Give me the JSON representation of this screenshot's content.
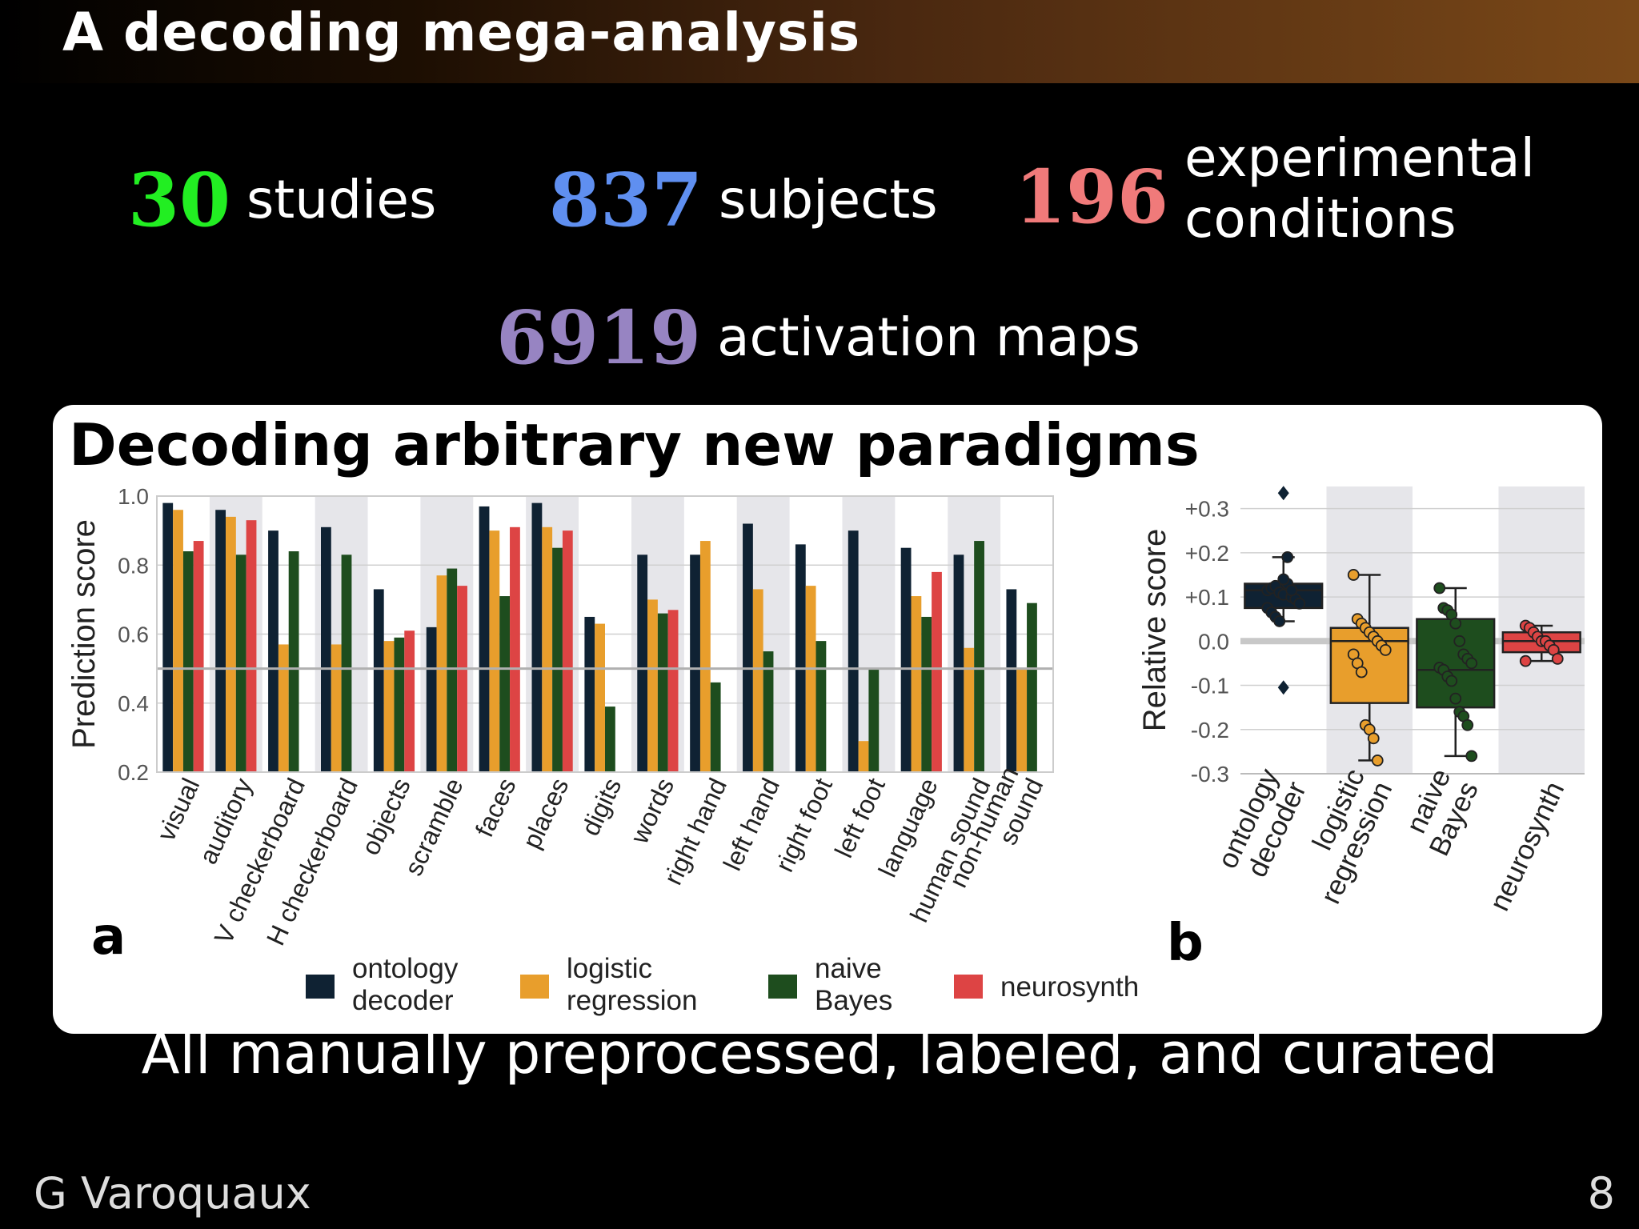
{
  "slide": {
    "title": "A decoding mega-analysis",
    "stats": [
      {
        "number": "30",
        "label": "studies",
        "color": "#22ee22"
      },
      {
        "number": "837",
        "label": "subjects",
        "color": "#5f8ff0"
      },
      {
        "number": "196",
        "label_line1": "experimental",
        "label_line2": "conditions",
        "color": "#f07a7a"
      },
      {
        "number": "6919",
        "label": "activation maps",
        "color": "#9784c2"
      }
    ],
    "panel_title": "Decoding arbitrary new paradigms",
    "footer_text": "All manually preprocessed, labeled, and curated",
    "author": "G Varoquaux",
    "page_number": "8"
  },
  "chart_data": [
    {
      "type": "bar",
      "panel_label": "a",
      "ylabel": "Prediction score",
      "ylim": [
        0.2,
        1.0
      ],
      "yticks": [
        "0.2",
        "0.4",
        "0.6",
        "0.8",
        "1.0"
      ],
      "reference_line": 0.5,
      "grid": true,
      "categories": [
        "visual",
        "auditory",
        "V checkerboard",
        "H checkerboard",
        "objects",
        "scramble",
        "faces",
        "places",
        "digits",
        "words",
        "right hand",
        "left hand",
        "right foot",
        "left foot",
        "language",
        "human sound",
        "non-human sound"
      ],
      "category_label_lines": [
        [
          "visual"
        ],
        [
          "auditory"
        ],
        [
          "V checkerboard"
        ],
        [
          "H checkerboard"
        ],
        [
          "objects"
        ],
        [
          "scramble"
        ],
        [
          "faces"
        ],
        [
          "places"
        ],
        [
          "digits"
        ],
        [
          "words"
        ],
        [
          "right hand"
        ],
        [
          "left hand"
        ],
        [
          "right foot"
        ],
        [
          "left foot"
        ],
        [
          "language"
        ],
        [
          "human sound"
        ],
        [
          "non-human",
          "sound"
        ]
      ],
      "series": [
        {
          "name": "ontology decoder",
          "legend_lines": [
            "ontology",
            "decoder"
          ],
          "color": "#0f2233",
          "values": [
            0.98,
            0.96,
            0.9,
            0.91,
            0.73,
            0.62,
            0.97,
            0.98,
            0.65,
            0.83,
            0.83,
            0.92,
            0.86,
            0.9,
            0.85,
            0.83,
            0.73
          ]
        },
        {
          "name": "logistic regression",
          "legend_lines": [
            "logistic",
            "regression"
          ],
          "color": "#e89e2c",
          "values": [
            0.96,
            0.94,
            0.57,
            0.57,
            0.58,
            0.77,
            0.9,
            0.91,
            0.63,
            0.7,
            0.87,
            0.73,
            0.74,
            0.29,
            0.71,
            0.56,
            0.5
          ]
        },
        {
          "name": "naive Bayes",
          "legend_lines": [
            "naive",
            "Bayes"
          ],
          "color": "#1e4d1e",
          "values": [
            0.84,
            0.83,
            0.84,
            0.83,
            0.59,
            0.79,
            0.71,
            0.85,
            0.39,
            0.66,
            0.46,
            0.55,
            0.58,
            0.5,
            0.65,
            0.87,
            0.69
          ]
        },
        {
          "name": "neurosynth",
          "legend_lines": [
            "neurosynth"
          ],
          "color": "#dd4444",
          "values": [
            0.87,
            0.93,
            null,
            null,
            0.61,
            0.74,
            0.91,
            0.9,
            null,
            0.67,
            null,
            null,
            null,
            null,
            0.78,
            null,
            null
          ]
        }
      ]
    },
    {
      "type": "box",
      "panel_label": "b",
      "ylabel": "Relative score",
      "ylim": [
        -0.3,
        0.35
      ],
      "yticks": [
        "+0.3",
        "+0.2",
        "+0.1",
        "0.0",
        "-0.1",
        "-0.2",
        "-0.3"
      ],
      "reference_line": 0.0,
      "categories": [
        "ontology decoder",
        "logistic regression",
        "naive Bayes",
        "neurosynth"
      ],
      "category_label_lines": [
        [
          "ontology",
          "decoder"
        ],
        [
          "logistic",
          "regression"
        ],
        [
          "naive",
          "Bayes"
        ],
        [
          "neurosynth"
        ]
      ],
      "boxes": [
        {
          "color": "#0f2233",
          "q1": 0.075,
          "median": 0.115,
          "q3": 0.13,
          "whisker_low": 0.045,
          "whisker_high": 0.19,
          "outliers": [
            0.335,
            -0.105
          ],
          "points": [
            0.115,
            0.12,
            0.125,
            0.11,
            0.105,
            0.13,
            0.1,
            0.095,
            0.085,
            0.075,
            0.065,
            0.055,
            0.045,
            0.14,
            0.19,
            0.115
          ]
        },
        {
          "color": "#e89e2c",
          "q1": -0.14,
          "median": 0.0,
          "q3": 0.03,
          "whisker_low": -0.27,
          "whisker_high": 0.15,
          "outliers": [],
          "points": [
            0.15,
            0.05,
            0.04,
            0.03,
            0.02,
            0.01,
            0.0,
            -0.01,
            -0.02,
            -0.03,
            -0.05,
            -0.07,
            -0.19,
            -0.2,
            -0.22,
            -0.27
          ]
        },
        {
          "color": "#1e4d1e",
          "q1": -0.15,
          "median": -0.065,
          "q3": 0.05,
          "whisker_low": -0.26,
          "whisker_high": 0.12,
          "outliers": [],
          "points": [
            0.12,
            0.075,
            0.07,
            0.06,
            0.04,
            0.0,
            -0.03,
            -0.04,
            -0.05,
            -0.06,
            -0.065,
            -0.08,
            -0.09,
            -0.13,
            -0.16,
            -0.17,
            -0.19,
            -0.26
          ]
        },
        {
          "color": "#dd4444",
          "q1": -0.025,
          "median": 0.0,
          "q3": 0.02,
          "whisker_low": -0.045,
          "whisker_high": 0.035,
          "outliers": [],
          "points": [
            0.035,
            0.03,
            0.02,
            0.01,
            0.0,
            0.0,
            -0.01,
            -0.02,
            -0.04,
            -0.045
          ]
        }
      ]
    }
  ]
}
